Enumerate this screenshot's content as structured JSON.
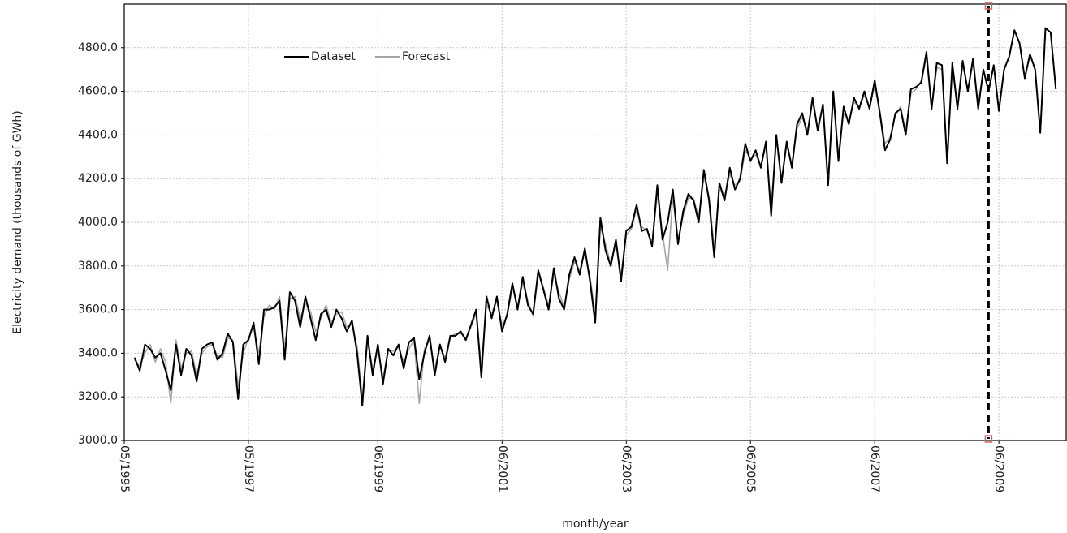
{
  "chart_data": {
    "type": "line",
    "x_label": "month/year",
    "y_label": "Electricity demand (thousands of GWh)",
    "x": [
      "07/1995",
      "08/1995",
      "09/1995",
      "10/1995",
      "11/1995",
      "12/1995",
      "01/1996",
      "02/1996",
      "03/1996",
      "04/1996",
      "05/1996",
      "06/1996",
      "07/1996",
      "08/1996",
      "09/1996",
      "10/1996",
      "11/1996",
      "12/1996",
      "01/1997",
      "02/1997",
      "03/1997",
      "04/1997",
      "05/1997",
      "06/1997",
      "07/1997",
      "08/1997",
      "09/1997",
      "10/1997",
      "11/1997",
      "12/1997",
      "01/1998",
      "02/1998",
      "03/1998",
      "04/1998",
      "05/1998",
      "06/1998",
      "07/1998",
      "08/1998",
      "09/1998",
      "10/1998",
      "11/1998",
      "12/1998",
      "01/1999",
      "02/1999",
      "03/1999",
      "04/1999",
      "05/1999",
      "06/1999",
      "07/1999",
      "08/1999",
      "09/1999",
      "10/1999",
      "11/1999",
      "12/1999",
      "01/2000",
      "02/2000",
      "03/2000",
      "04/2000",
      "05/2000",
      "06/2000",
      "07/2000",
      "08/2000",
      "09/2000",
      "10/2000",
      "11/2000",
      "12/2000",
      "01/2001",
      "02/2001",
      "03/2001",
      "04/2001",
      "05/2001",
      "06/2001",
      "07/2001",
      "08/2001",
      "09/2001",
      "10/2001",
      "11/2001",
      "12/2001",
      "01/2002",
      "02/2002",
      "03/2002",
      "04/2002",
      "05/2002",
      "06/2002",
      "07/2002",
      "08/2002",
      "09/2002",
      "10/2002",
      "11/2002",
      "12/2002",
      "01/2003",
      "02/2003",
      "03/2003",
      "04/2003",
      "05/2003",
      "06/2003",
      "07/2003",
      "08/2003",
      "09/2003",
      "10/2003",
      "11/2003",
      "12/2003",
      "01/2004",
      "02/2004",
      "03/2004",
      "04/2004",
      "05/2004",
      "06/2004",
      "07/2004",
      "08/2004",
      "09/2004",
      "10/2004",
      "11/2004",
      "12/2004",
      "01/2005",
      "02/2005",
      "03/2005",
      "04/2005",
      "05/2005",
      "06/2005",
      "07/2005",
      "08/2005",
      "09/2005",
      "10/2005",
      "11/2005",
      "12/2005",
      "01/2006",
      "02/2006",
      "03/2006",
      "04/2006",
      "05/2006",
      "06/2006",
      "07/2006",
      "08/2006",
      "09/2006",
      "10/2006",
      "11/2006",
      "12/2006",
      "01/2007",
      "02/2007",
      "03/2007",
      "04/2007",
      "05/2007",
      "06/2007",
      "07/2007",
      "08/2007",
      "09/2007",
      "10/2007",
      "11/2007",
      "12/2007",
      "01/2008",
      "02/2008",
      "03/2008",
      "04/2008",
      "05/2008",
      "06/2008",
      "07/2008",
      "08/2008",
      "09/2008",
      "10/2008",
      "11/2008",
      "12/2008",
      "01/2009",
      "02/2009",
      "03/2009",
      "04/2009",
      "05/2009",
      "06/2009",
      "07/2009",
      "08/2009",
      "09/2009",
      "10/2009",
      "11/2009",
      "12/2009",
      "01/2010",
      "02/2010",
      "03/2010",
      "04/2010",
      "05/2010"
    ],
    "series": [
      {
        "name": "Dataset",
        "color": "#000000",
        "values": [
          3380,
          3320,
          3440,
          3420,
          3380,
          3400,
          3320,
          3230,
          3440,
          3300,
          3420,
          3390,
          3270,
          3420,
          3440,
          3450,
          3370,
          3400,
          3490,
          3450,
          3190,
          3440,
          3460,
          3540,
          3350,
          3600,
          3600,
          3610,
          3640,
          3370,
          3680,
          3640,
          3520,
          3660,
          3560,
          3460,
          3580,
          3600,
          3520,
          3600,
          3560,
          3500,
          3550,
          3400,
          3160,
          3480,
          3300,
          3440,
          3260,
          3420,
          3390,
          3440,
          3330,
          3450,
          3470,
          3280,
          3400,
          3480,
          3300,
          3440,
          3360,
          3480,
          3480,
          3500,
          3460,
          3530,
          3600,
          3290,
          3660,
          3560,
          3660,
          3500,
          3580,
          3720,
          3600,
          3750,
          3620,
          3580,
          3780,
          3690,
          3600,
          3790,
          3650,
          3600,
          3760,
          3840,
          3760,
          3880,
          3730,
          3540,
          4020,
          3870,
          3800,
          3920,
          3730,
          3960,
          3980,
          4080,
          3960,
          3970,
          3890,
          4170,
          3920,
          4000,
          4150,
          3900,
          4050,
          4130,
          4100,
          4000,
          4240,
          4100,
          3840,
          4180,
          4100,
          4250,
          4150,
          4200,
          4360,
          4280,
          4330,
          4250,
          4370,
          4030,
          4400,
          4180,
          4370,
          4250,
          4450,
          4500,
          4400,
          4570,
          4420,
          4540,
          4170,
          4600,
          4280,
          4530,
          4450,
          4570,
          4520,
          4600,
          4520,
          4650,
          4500,
          4330,
          4380,
          4500,
          4520,
          4400,
          4610,
          4620,
          4640,
          4780,
          4520,
          4730,
          4720,
          4270,
          4730,
          4520,
          4740,
          4600,
          4750,
          4520,
          4700,
          4600,
          4720,
          4510,
          4700,
          4760,
          4880,
          4820,
          4660,
          4770,
          4700,
          4410,
          4890,
          4870,
          4610
        ]
      },
      {
        "name": "Forecast",
        "color": "#a6a6a6",
        "values": [
          3370,
          3340,
          3400,
          3440,
          3360,
          3420,
          3360,
          3170,
          3460,
          3330,
          3400,
          3410,
          3300,
          3400,
          3430,
          3440,
          3390,
          3380,
          3470,
          3460,
          3250,
          3400,
          3470,
          3520,
          3400,
          3570,
          3620,
          3600,
          3660,
          3420,
          3650,
          3660,
          3560,
          3630,
          3590,
          3500,
          3560,
          3620,
          3540,
          3580,
          3590,
          3520,
          3530,
          3430,
          3200,
          3450,
          3330,
          3420,
          3290,
          3410,
          3410,
          3430,
          3360,
          3420,
          3460,
          3170,
          3420,
          3460,
          3330,
          3430,
          3380,
          3470,
          3490,
          3490,
          3470,
          3520,
          3580,
          3340,
          3620,
          3580,
          3640,
          3530,
          3570,
          3700,
          3620,
          3720,
          3640,
          3570,
          3760,
          3700,
          3620,
          3760,
          3680,
          3610,
          3740,
          3820,
          3780,
          3860,
          3750,
          3580,
          3980,
          3900,
          3810,
          3900,
          3760,
          3940,
          3970,
          4060,
          3980,
          3960,
          3910,
          4130,
          3950,
          3780,
          4120,
          3920,
          4030,
          4110,
          4110,
          4020,
          4210,
          4120,
          3880,
          4150,
          4120,
          4220,
          4170,
          4190,
          4330,
          4290,
          4310,
          4260,
          4350,
          4070,
          4380,
          4200,
          4350,
          4270,
          4430,
          4480,
          4420,
          4550,
          4440,
          4520,
          4200,
          4570,
          4310,
          4500,
          4460,
          4550,
          4530,
          4580,
          4530,
          4620,
          4510,
          4360,
          4390,
          4490,
          4530,
          4420,
          4590,
          4610,
          4650,
          4750,
          4540,
          4710,
          4700,
          4300,
          4700,
          4530,
          4720,
          4610,
          4730,
          4540,
          4690,
          4610,
          null,
          null,
          null,
          null,
          null,
          null,
          null,
          null,
          null,
          null,
          null,
          null,
          null
        ]
      }
    ],
    "divider": "04/2009",
    "xlim": [
      "05/1995",
      "07/2010"
    ],
    "xticks": [
      "05/1995",
      "05/1997",
      "06/1999",
      "06/2001",
      "06/2003",
      "06/2005",
      "06/2007",
      "06/2009"
    ],
    "ylim": [
      3000,
      5000
    ],
    "yticks": [
      {
        "value": 3000,
        "label": "3000.0"
      },
      {
        "value": 3200,
        "label": "3200.0"
      },
      {
        "value": 3400,
        "label": "3400.0"
      },
      {
        "value": 3600,
        "label": "3600.0"
      },
      {
        "value": 3800,
        "label": "3800.0"
      },
      {
        "value": 4000,
        "label": "4000.0"
      },
      {
        "value": 4200,
        "label": "4200.0"
      },
      {
        "value": 4400,
        "label": "4400.0"
      },
      {
        "value": 4600,
        "label": "4600.0"
      },
      {
        "value": 4800,
        "label": "4800.0"
      }
    ],
    "grid": true,
    "legend": "upper left"
  }
}
